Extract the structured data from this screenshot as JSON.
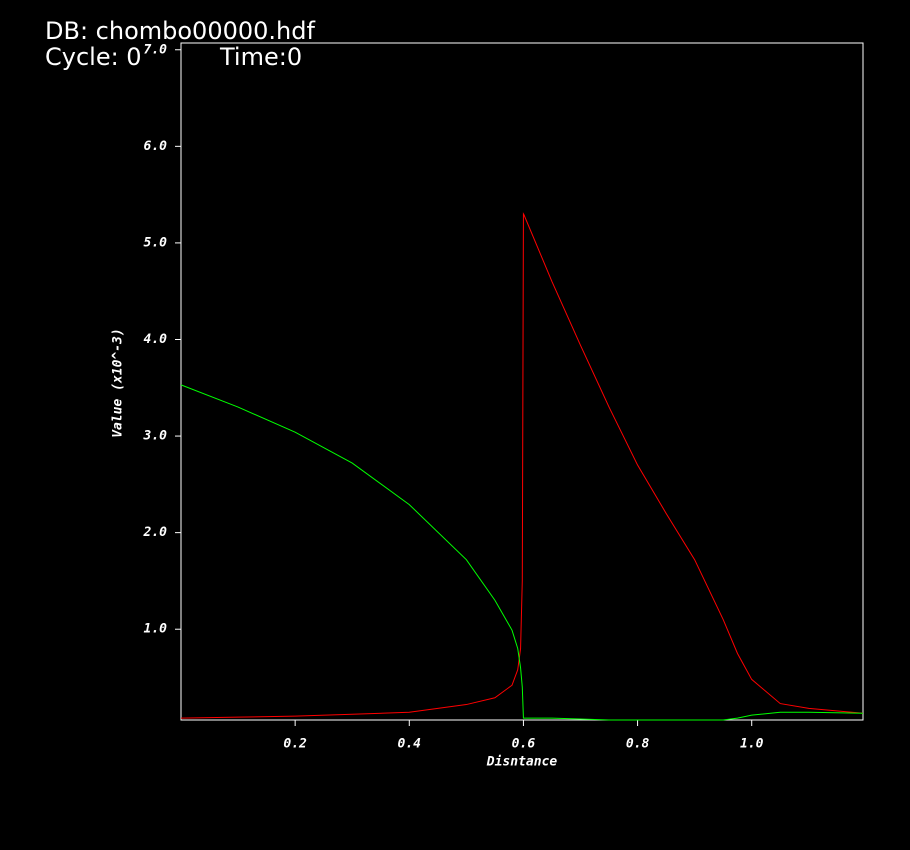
{
  "chart_data": {
    "type": "line",
    "database_label": "DB: chombo00000.hdf",
    "cycle_label": "Cycle: 0",
    "time_label": "Time:0",
    "x_label": "Disntance",
    "y_label": "Value (x10^-3)",
    "x": [
      0,
      0.1,
      0.2,
      0.3,
      0.4,
      0.5,
      0.55,
      0.58,
      0.59,
      0.595,
      0.598,
      0.6,
      0.601,
      0.65,
      0.7,
      0.75,
      0.8,
      0.85,
      0.9,
      0.95,
      0.975,
      1.0,
      1.05,
      1.1,
      1.195
    ],
    "series": [
      {
        "color": "#ff0000",
        "values": [
          0.08,
          0.09,
          0.1,
          0.12,
          0.14,
          0.22,
          0.29,
          0.42,
          0.58,
          0.8,
          1.5,
          5.3,
          5.29,
          4.6,
          3.94,
          3.3,
          2.7,
          2.2,
          1.72,
          1.1,
          0.75,
          0.48,
          0.23,
          0.18,
          0.13
        ]
      },
      {
        "color": "#00ff00",
        "values": [
          3.53,
          3.3,
          3.04,
          2.72,
          2.29,
          1.72,
          1.3,
          0.99,
          0.8,
          0.6,
          0.4,
          0.08,
          0.08,
          0.08,
          0.07,
          0.06,
          0.06,
          0.06,
          0.06,
          0.06,
          0.08,
          0.11,
          0.14,
          0.14,
          0.13
        ]
      }
    ],
    "xlim": [
      0,
      1.195
    ],
    "ylim": [
      0.06,
      7.07
    ],
    "xticks": [
      0.2,
      0.4,
      0.6,
      0.8,
      {
        "value": 1,
        "label": "1.0"
      }
    ],
    "yticks": [
      {
        "value": 1,
        "label": "1.0"
      },
      {
        "value": 2,
        "label": "2.0"
      },
      {
        "value": 3,
        "label": "3.0"
      },
      {
        "value": 4,
        "label": "4.0"
      },
      {
        "value": 5,
        "label": "5.0"
      },
      {
        "value": 6,
        "label": "6.0"
      },
      {
        "value": 7,
        "label": "7.0"
      }
    ],
    "grid": false
  }
}
